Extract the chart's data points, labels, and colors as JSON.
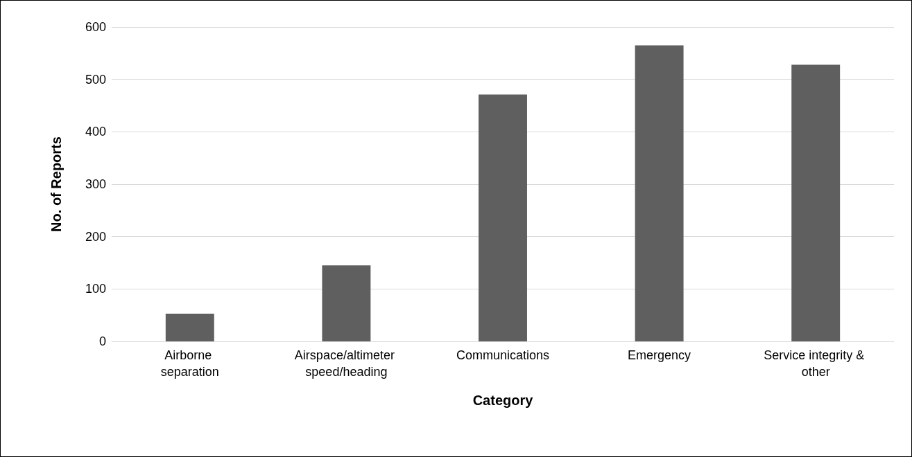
{
  "chart_data": {
    "type": "bar",
    "xlabel": "Category",
    "ylabel": "No. of Reports",
    "categories": [
      "Airborne separation",
      "Airspace/altimeter speed/heading",
      "Communications",
      "Emergency",
      "Service integrity & other"
    ],
    "values": [
      53,
      145,
      471,
      565,
      528
    ],
    "color": "#5f5f5f",
    "ylim": [
      0,
      600
    ],
    "yticks": [
      0,
      100,
      200,
      300,
      400,
      500,
      600
    ],
    "grid": "y"
  }
}
